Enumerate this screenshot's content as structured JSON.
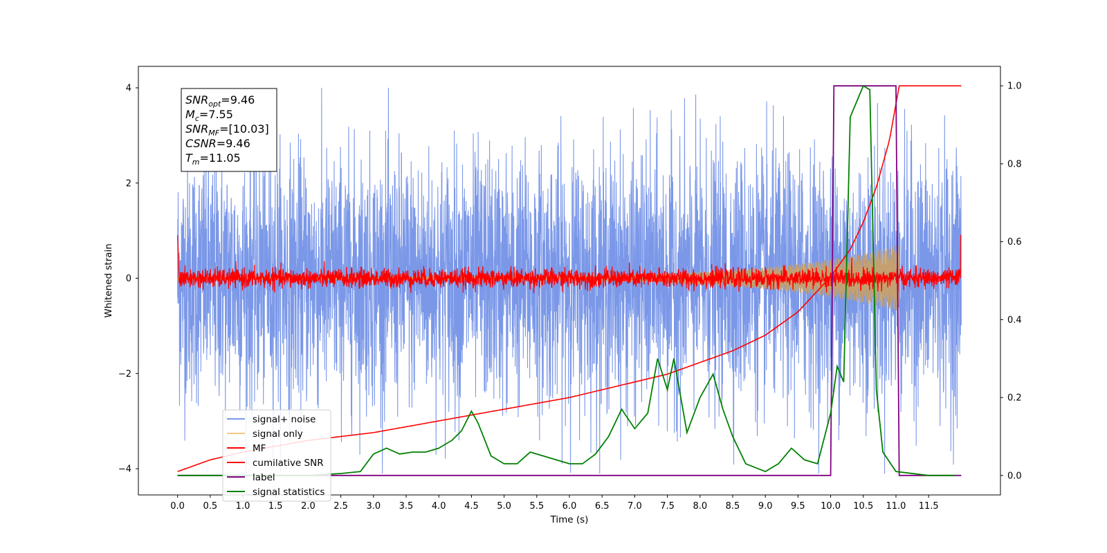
{
  "chart_data": {
    "type": "line",
    "xlabel": "Time (s)",
    "ylabel": "Whitened strain",
    "xlim": [
      -0.6,
      12.6
    ],
    "ylim": [
      -4.55,
      4.45
    ],
    "y2lim": [
      -0.05,
      1.05
    ],
    "x_ticks": [
      "0.0",
      "0.5",
      "1.0",
      "1.5",
      "2.0",
      "2.5",
      "3.0",
      "3.5",
      "4.0",
      "4.5",
      "5.0",
      "5.5",
      "6.0",
      "6.5",
      "7.0",
      "7.5",
      "8.0",
      "8.5",
      "9.0",
      "9.5",
      "10.0",
      "10.5",
      "11.0",
      "11.5"
    ],
    "y_ticks": [
      "−4",
      "−2",
      "0",
      "2",
      "4"
    ],
    "y2_ticks": [
      "0.0",
      "0.2",
      "0.4",
      "0.6",
      "0.8",
      "1.0"
    ],
    "legend_position": "lower-left",
    "annotation": {
      "lines": [
        {
          "base": "SNR",
          "sub": "opt",
          "value": "=9.46"
        },
        {
          "base": "M",
          "sub": "c",
          "value": "=7.55"
        },
        {
          "base": "SNR",
          "sub": "MF",
          "value": "=[10.03]"
        },
        {
          "base": "CSNR",
          "sub": "",
          "value": "=9.46"
        },
        {
          "base": "T",
          "sub": "m",
          "value": "=11.05"
        }
      ]
    },
    "series": [
      {
        "name": "signal+ noise",
        "color": "#7b98e8",
        "axis": "left",
        "noise_amplitude": 1.3,
        "x_range": [
          0.0,
          12.0
        ]
      },
      {
        "name": "signal only",
        "color": "#f5c77e",
        "axis": "left",
        "chirp_start_amp": 0.04,
        "chirp_end_amp": 0.7,
        "end_x": 11.05
      },
      {
        "name": "MF",
        "color": "#ff0000",
        "axis": "left",
        "noise_amplitude": 0.1
      },
      {
        "name": "cumilative SNR",
        "color": "#ff0000",
        "axis": "right",
        "x": [
          0.0,
          0.5,
          1.0,
          2.0,
          3.0,
          4.0,
          5.0,
          6.0,
          7.0,
          7.5,
          8.0,
          8.5,
          9.0,
          9.5,
          10.0,
          10.3,
          10.5,
          10.7,
          10.9,
          11.05,
          12.0
        ],
        "y": [
          0.01,
          0.04,
          0.06,
          0.09,
          0.11,
          0.14,
          0.17,
          0.2,
          0.24,
          0.26,
          0.29,
          0.32,
          0.36,
          0.42,
          0.51,
          0.58,
          0.65,
          0.74,
          0.86,
          1.0,
          1.0
        ]
      },
      {
        "name": "label",
        "color": "#800080",
        "axis": "right",
        "x": [
          0.0,
          10.0,
          10.05,
          11.0,
          11.05,
          12.0
        ],
        "y": [
          0.0,
          0.0,
          1.0,
          1.0,
          0.0,
          0.0
        ]
      },
      {
        "name": "signal statistics",
        "color": "#008000",
        "axis": "right",
        "x": [
          0.0,
          0.5,
          1.0,
          1.5,
          2.0,
          2.5,
          2.8,
          3.0,
          3.2,
          3.4,
          3.6,
          3.8,
          4.0,
          4.2,
          4.35,
          4.5,
          4.6,
          4.8,
          5.0,
          5.2,
          5.4,
          5.6,
          5.8,
          6.0,
          6.2,
          6.4,
          6.6,
          6.8,
          7.0,
          7.2,
          7.35,
          7.5,
          7.6,
          7.8,
          8.0,
          8.2,
          8.35,
          8.5,
          8.7,
          9.0,
          9.2,
          9.4,
          9.6,
          9.8,
          10.0,
          10.1,
          10.2,
          10.3,
          10.4,
          10.5,
          10.6,
          10.7,
          10.8,
          11.0,
          11.5,
          11.9
        ],
        "y": [
          0.0,
          0.0,
          0.0,
          0.0,
          0.0,
          0.005,
          0.01,
          0.055,
          0.07,
          0.055,
          0.06,
          0.06,
          0.07,
          0.09,
          0.115,
          0.165,
          0.135,
          0.05,
          0.03,
          0.03,
          0.06,
          0.05,
          0.04,
          0.03,
          0.03,
          0.055,
          0.1,
          0.17,
          0.12,
          0.16,
          0.3,
          0.22,
          0.3,
          0.11,
          0.2,
          0.26,
          0.17,
          0.1,
          0.03,
          0.01,
          0.03,
          0.07,
          0.04,
          0.03,
          0.16,
          0.28,
          0.24,
          0.92,
          0.96,
          1.0,
          0.99,
          0.22,
          0.06,
          0.01,
          0.0,
          0.0
        ]
      }
    ]
  }
}
